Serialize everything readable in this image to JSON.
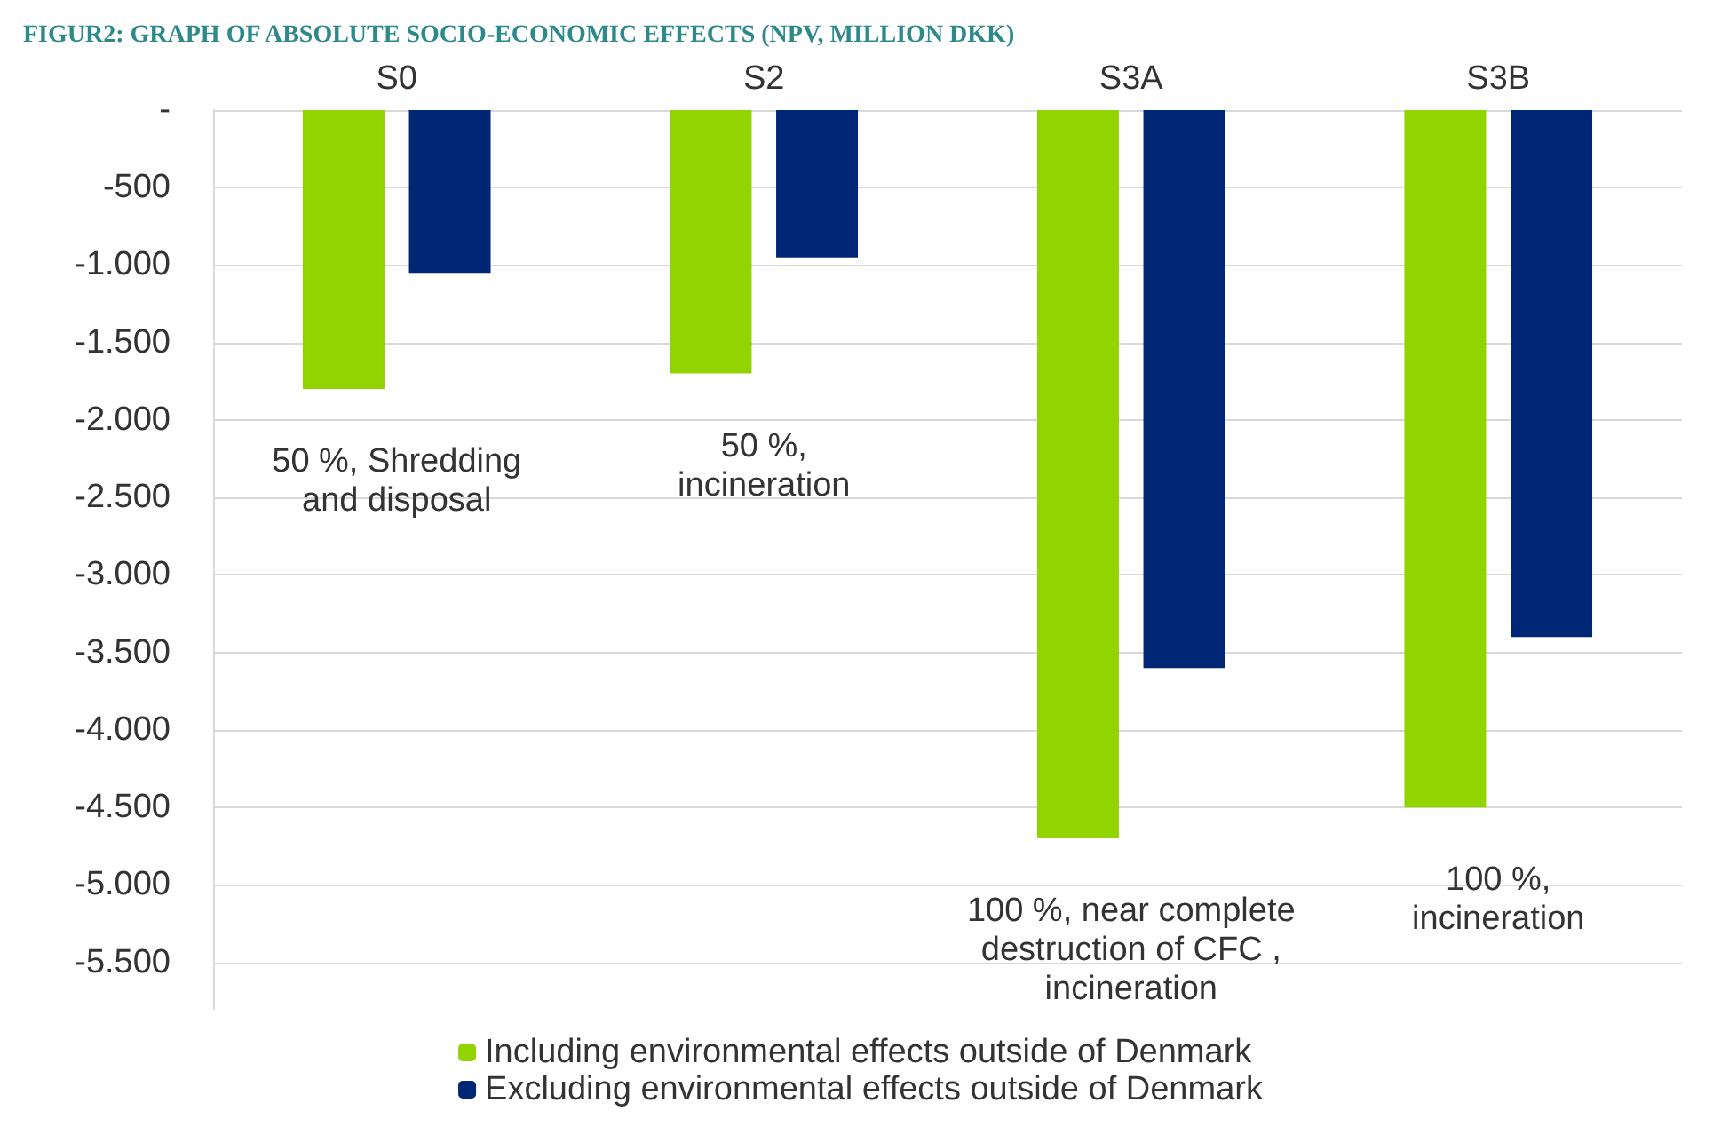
{
  "chart_data": {
    "type": "bar",
    "title": "FIGUR2: GRAPH OF ABSOLUTE SOCIO-ECONOMIC EFFECTS (NPV, MILLION DKK)",
    "categories": [
      "S0",
      "S2",
      "S3A",
      "S3B"
    ],
    "series": [
      {
        "name": "Including environmental effects outside of Denmark",
        "color": "#92d400",
        "values": [
          -1800,
          -1700,
          -4700,
          -4500
        ]
      },
      {
        "name": "Excluding environmental effects outside of Denmark",
        "color": "#002776",
        "values": [
          -1050,
          -950,
          -3600,
          -3400
        ]
      }
    ],
    "ylim": [
      -5800,
      0
    ],
    "yticks": [
      {
        "value": 0,
        "label": "-"
      },
      -500,
      {
        "value": -1000,
        "label": "-1.000"
      },
      {
        "value": -1500,
        "label": "-1.500"
      },
      {
        "value": -2000,
        "label": "-2.000"
      },
      {
        "value": -2500,
        "label": "-2.500"
      },
      {
        "value": -3000,
        "label": "-3.000"
      },
      {
        "value": -3500,
        "label": "-3.500"
      },
      {
        "value": -4000,
        "label": "-4.000"
      },
      {
        "value": -4500,
        "label": "-4.500"
      },
      {
        "value": -5000,
        "label": "-5.000"
      },
      {
        "value": -5500,
        "label": "-5.500"
      }
    ],
    "grid": "y",
    "legend": "bottom",
    "annotations": [
      "50 %, Shredding\nand disposal",
      "50 %,\nincineration",
      "100 %, near complete\ndestruction of CFC ,\nincineration",
      "100 %,\nincineration"
    ]
  }
}
